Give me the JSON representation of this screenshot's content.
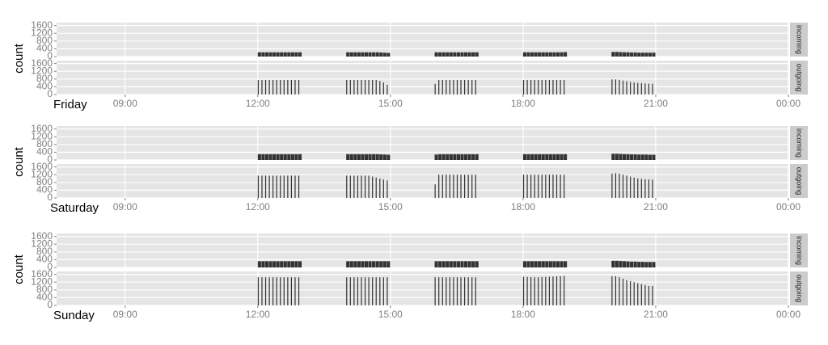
{
  "chart_data": [
    {
      "type": "bar",
      "title": "Friday",
      "y_label": "count",
      "x": [
        720,
        725,
        730,
        735,
        740,
        745,
        750,
        755,
        760,
        765,
        770,
        775,
        840,
        845,
        850,
        855,
        860,
        865,
        870,
        875,
        880,
        885,
        890,
        895,
        960,
        965,
        970,
        975,
        980,
        985,
        990,
        995,
        1000,
        1005,
        1010,
        1015,
        1080,
        1085,
        1090,
        1095,
        1100,
        1105,
        1110,
        1115,
        1120,
        1125,
        1130,
        1135,
        1200,
        1205,
        1210,
        1215,
        1220,
        1225,
        1230,
        1235,
        1240,
        1245,
        1250,
        1255
      ],
      "series": [
        {
          "name": "incoming",
          "color": "#333333",
          "values": [
            220,
            220,
            220,
            220,
            220,
            220,
            220,
            220,
            220,
            220,
            220,
            220,
            220,
            220,
            220,
            220,
            220,
            220,
            220,
            220,
            220,
            210,
            200,
            190,
            220,
            220,
            220,
            220,
            220,
            220,
            220,
            220,
            220,
            220,
            220,
            220,
            220,
            220,
            220,
            220,
            220,
            220,
            220,
            220,
            220,
            220,
            220,
            230,
            240,
            240,
            230,
            220,
            220,
            210,
            210,
            200,
            200,
            200,
            200,
            200
          ]
        },
        {
          "name": "outgoing",
          "color": "#333333",
          "values": [
            750,
            750,
            750,
            750,
            750,
            750,
            750,
            750,
            750,
            750,
            750,
            750,
            750,
            750,
            750,
            750,
            750,
            750,
            750,
            750,
            750,
            700,
            620,
            500,
            550,
            750,
            750,
            750,
            750,
            750,
            750,
            750,
            750,
            750,
            750,
            750,
            750,
            750,
            750,
            750,
            750,
            750,
            750,
            750,
            750,
            750,
            750,
            750,
            780,
            780,
            760,
            720,
            690,
            650,
            620,
            600,
            590,
            570,
            560,
            550
          ]
        }
      ],
      "xlim": [
        447,
        1440
      ],
      "xticks": [
        {
          "value": 540,
          "label": "09:00"
        },
        {
          "value": 720,
          "label": "12:00"
        },
        {
          "value": 900,
          "label": "15:00"
        },
        {
          "value": 1080,
          "label": "18:00"
        },
        {
          "value": 1260,
          "label": "21:00"
        },
        {
          "value": 1440,
          "label": "00:00"
        }
      ],
      "ylim": [
        0,
        1750
      ],
      "yticks": [
        0,
        400,
        800,
        1200,
        1600
      ],
      "grid": true
    },
    {
      "type": "bar",
      "title": "Saturday",
      "y_label": "count",
      "x": [
        720,
        725,
        730,
        735,
        740,
        745,
        750,
        755,
        760,
        765,
        770,
        775,
        840,
        845,
        850,
        855,
        860,
        865,
        870,
        875,
        880,
        885,
        890,
        895,
        960,
        965,
        970,
        975,
        980,
        985,
        990,
        995,
        1000,
        1005,
        1010,
        1015,
        1080,
        1085,
        1090,
        1095,
        1100,
        1105,
        1110,
        1115,
        1120,
        1125,
        1130,
        1135,
        1200,
        1205,
        1210,
        1215,
        1220,
        1225,
        1230,
        1235,
        1240,
        1245,
        1250,
        1255
      ],
      "series": [
        {
          "name": "incoming",
          "color": "#333333",
          "values": [
            300,
            300,
            300,
            300,
            300,
            300,
            300,
            300,
            300,
            300,
            300,
            300,
            300,
            300,
            300,
            300,
            300,
            300,
            300,
            300,
            300,
            290,
            280,
            270,
            280,
            300,
            300,
            300,
            300,
            300,
            300,
            300,
            300,
            300,
            300,
            300,
            300,
            300,
            300,
            300,
            300,
            300,
            300,
            300,
            300,
            300,
            300,
            300,
            320,
            320,
            310,
            300,
            300,
            290,
            290,
            280,
            280,
            280,
            270,
            270
          ]
        },
        {
          "name": "outgoing",
          "color": "#333333",
          "values": [
            1150,
            1150,
            1150,
            1150,
            1150,
            1150,
            1150,
            1150,
            1150,
            1150,
            1150,
            1150,
            1150,
            1150,
            1150,
            1150,
            1150,
            1150,
            1150,
            1100,
            1050,
            1000,
            950,
            900,
            700,
            1200,
            1200,
            1200,
            1200,
            1200,
            1200,
            1200,
            1200,
            1200,
            1200,
            1200,
            1200,
            1200,
            1200,
            1200,
            1200,
            1200,
            1200,
            1200,
            1200,
            1200,
            1200,
            1200,
            1250,
            1280,
            1250,
            1200,
            1150,
            1100,
            1050,
            1000,
            980,
            960,
            950,
            940
          ]
        }
      ],
      "xlim": [
        447,
        1440
      ],
      "xticks": [
        {
          "value": 540,
          "label": "09:00"
        },
        {
          "value": 720,
          "label": "12:00"
        },
        {
          "value": 900,
          "label": "15:00"
        },
        {
          "value": 1080,
          "label": "18:00"
        },
        {
          "value": 1260,
          "label": "21:00"
        },
        {
          "value": 1440,
          "label": "00:00"
        }
      ],
      "ylim": [
        0,
        1750
      ],
      "yticks": [
        0,
        400,
        800,
        1200,
        1600
      ],
      "grid": true
    },
    {
      "type": "bar",
      "title": "Sunday",
      "y_label": "count",
      "x": [
        720,
        725,
        730,
        735,
        740,
        745,
        750,
        755,
        760,
        765,
        770,
        775,
        840,
        845,
        850,
        855,
        860,
        865,
        870,
        875,
        880,
        885,
        890,
        895,
        960,
        965,
        970,
        975,
        980,
        985,
        990,
        995,
        1000,
        1005,
        1010,
        1015,
        1080,
        1085,
        1090,
        1095,
        1100,
        1105,
        1110,
        1115,
        1120,
        1125,
        1130,
        1135,
        1200,
        1205,
        1210,
        1215,
        1220,
        1225,
        1230,
        1235,
        1240,
        1245,
        1250,
        1255
      ],
      "series": [
        {
          "name": "incoming",
          "color": "#333333",
          "values": [
            320,
            320,
            320,
            320,
            320,
            320,
            320,
            320,
            320,
            320,
            320,
            320,
            320,
            320,
            320,
            320,
            320,
            320,
            320,
            320,
            320,
            320,
            320,
            320,
            320,
            320,
            320,
            320,
            320,
            320,
            320,
            320,
            320,
            320,
            320,
            320,
            320,
            320,
            320,
            320,
            320,
            320,
            320,
            320,
            320,
            320,
            320,
            320,
            340,
            340,
            330,
            320,
            310,
            300,
            300,
            290,
            290,
            280,
            280,
            280
          ]
        },
        {
          "name": "outgoing",
          "color": "#333333",
          "values": [
            1450,
            1450,
            1450,
            1450,
            1450,
            1450,
            1450,
            1450,
            1450,
            1450,
            1450,
            1450,
            1450,
            1450,
            1450,
            1450,
            1450,
            1450,
            1450,
            1450,
            1450,
            1450,
            1450,
            1450,
            1450,
            1450,
            1450,
            1450,
            1450,
            1450,
            1450,
            1450,
            1450,
            1450,
            1450,
            1450,
            1480,
            1470,
            1460,
            1450,
            1450,
            1460,
            1470,
            1480,
            1490,
            1500,
            1510,
            1520,
            1500,
            1500,
            1450,
            1380,
            1300,
            1250,
            1200,
            1150,
            1100,
            1050,
            1000,
            1000
          ]
        }
      ],
      "xlim": [
        447,
        1440
      ],
      "xticks": [
        {
          "value": 540,
          "label": "09:00"
        },
        {
          "value": 720,
          "label": "12:00"
        },
        {
          "value": 900,
          "label": "15:00"
        },
        {
          "value": 1080,
          "label": "18:00"
        },
        {
          "value": 1260,
          "label": "21:00"
        },
        {
          "value": 1440,
          "label": "00:00"
        }
      ],
      "ylim": [
        0,
        1750
      ],
      "yticks": [
        0,
        400,
        800,
        1200,
        1600
      ],
      "grid": true
    }
  ]
}
